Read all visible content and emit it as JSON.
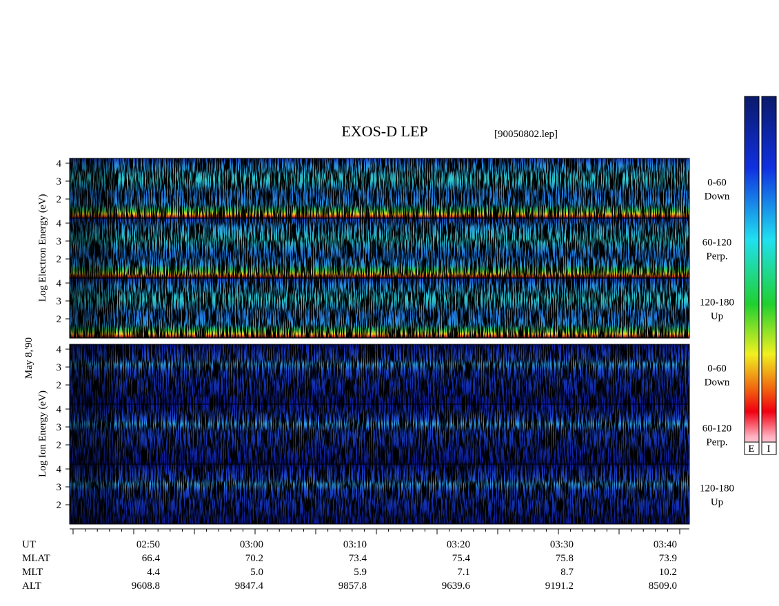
{
  "title": "EXOS-D LEP",
  "file": "[90050802.lep]",
  "date_label": "May  8,'90",
  "electron_axis_label": "Log  Electron  Energy (eV)",
  "ion_axis_label": "Log  Ion  Energy (eV)",
  "energy_ticks": [
    4,
    3,
    2
  ],
  "electron_panels": [
    {
      "angle": "0-60",
      "direction": "Down"
    },
    {
      "angle": "60-120",
      "direction": "Perp."
    },
    {
      "angle": "120-180",
      "direction": "Up"
    }
  ],
  "ion_panels": [
    {
      "angle": "0-60",
      "direction": "Down"
    },
    {
      "angle": "60-120",
      "direction": "Perp."
    },
    {
      "angle": "120-180",
      "direction": "Up"
    }
  ],
  "orbit_table": {
    "row_labels": [
      "UT",
      "MLAT",
      "MLT",
      "ALT"
    ],
    "columns": [
      [
        "02:50",
        "66.4",
        "4.4",
        "9608.8"
      ],
      [
        "03:00",
        "70.2",
        "5.0",
        "9847.4"
      ],
      [
        "03:10",
        "73.4",
        "5.9",
        "9857.8"
      ],
      [
        "03:20",
        "75.4",
        "7.1",
        "9639.6"
      ],
      [
        "03:30",
        "75.8",
        "8.7",
        "9191.2"
      ],
      [
        "03:40",
        "73.9",
        "10.2",
        "8509.0"
      ]
    ]
  },
  "colorbar_labels": [
    "E",
    "I"
  ]
}
